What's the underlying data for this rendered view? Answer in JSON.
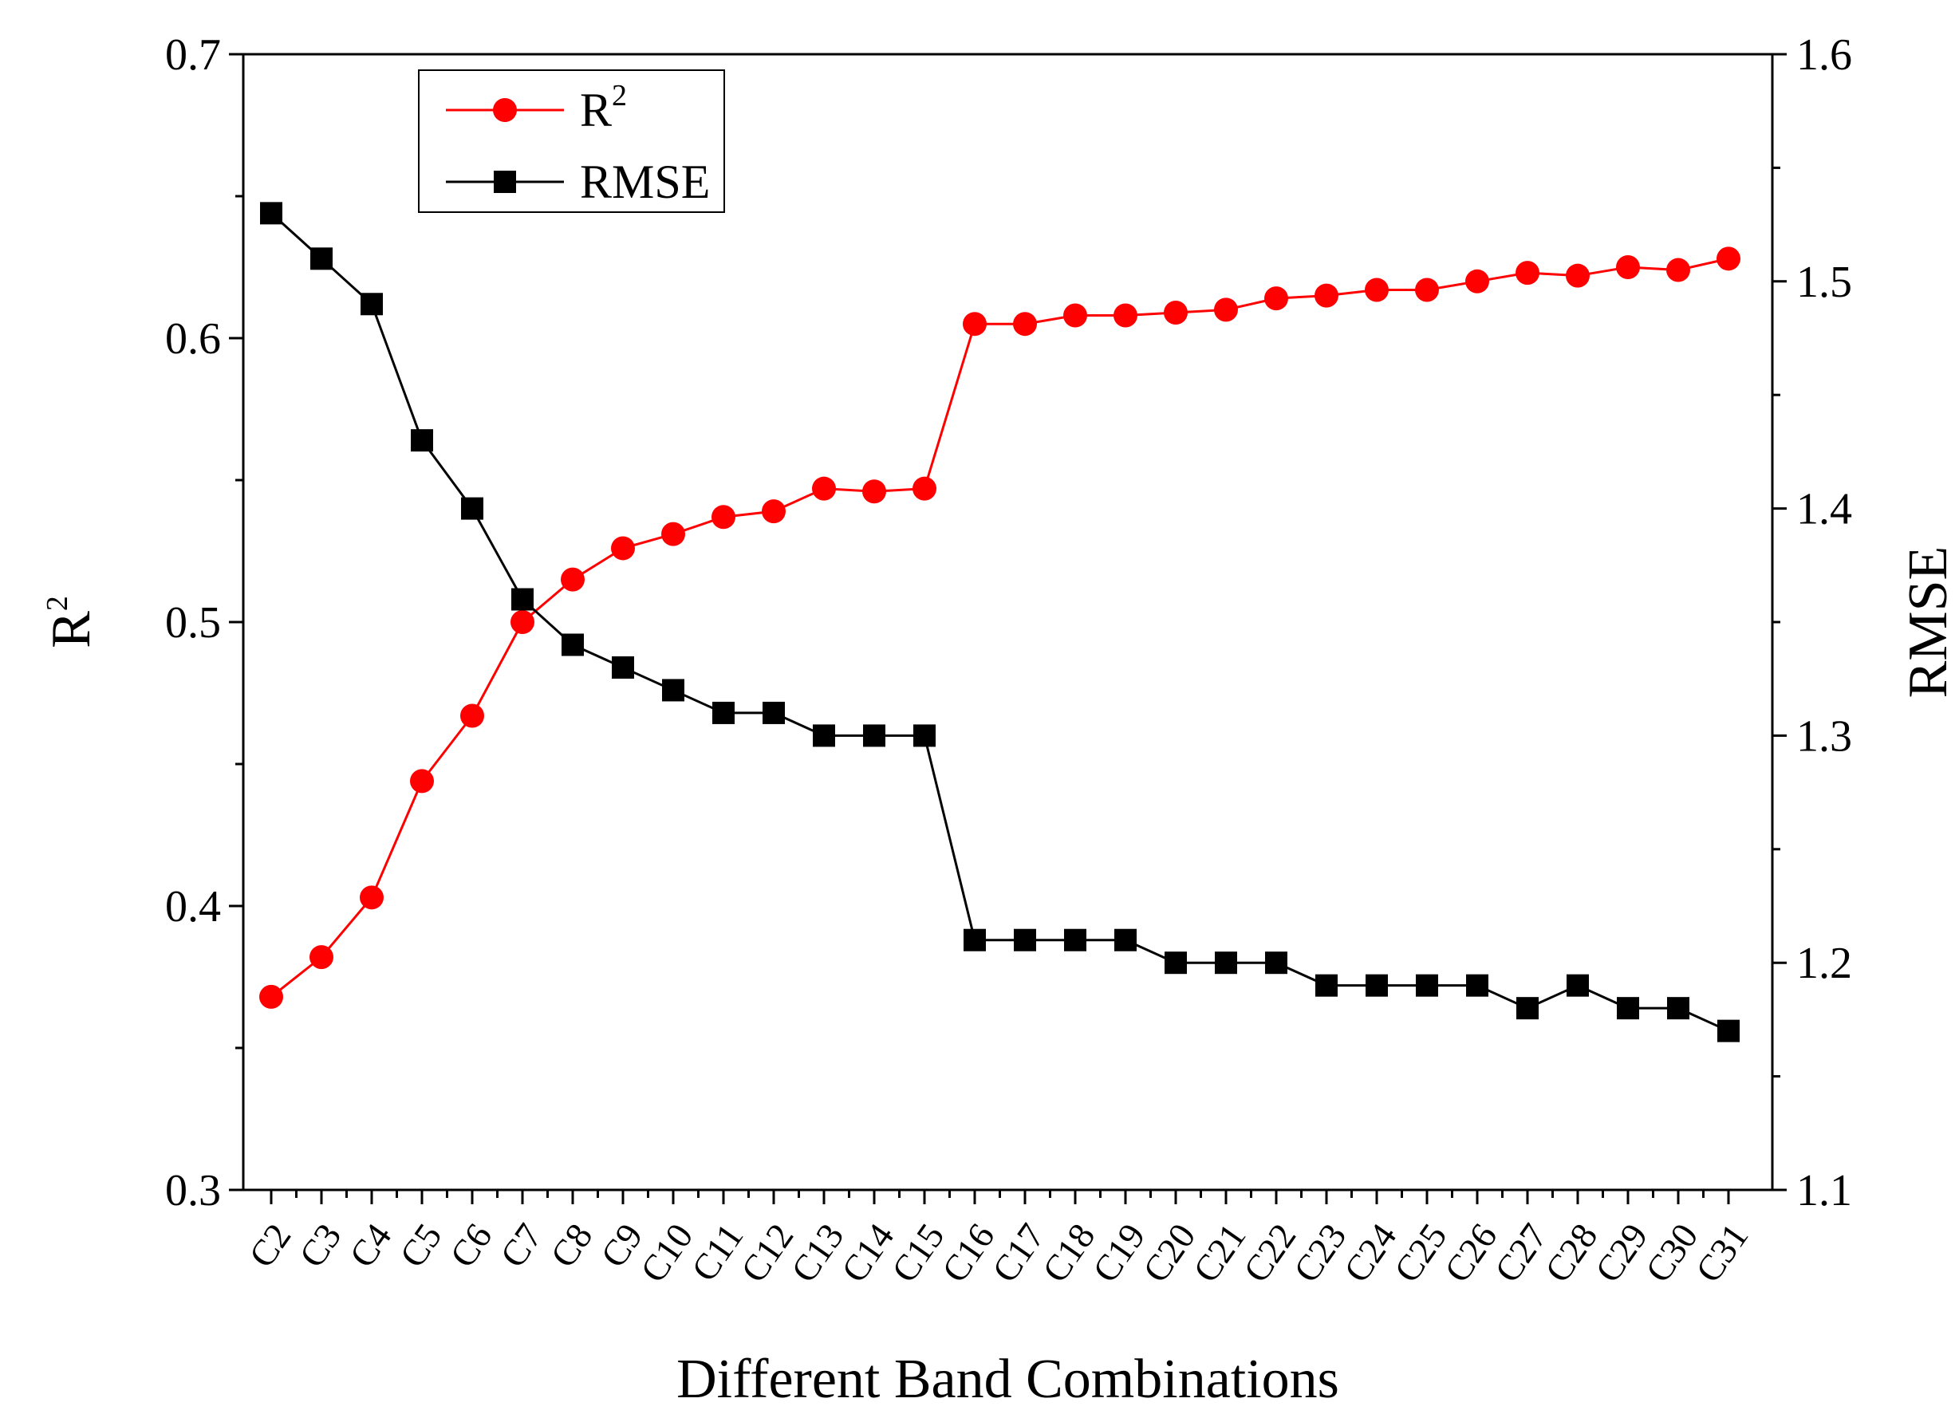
{
  "chart_data": {
    "type": "line",
    "categories": [
      "C2",
      "C3",
      "C4",
      "C5",
      "C6",
      "C7",
      "C8",
      "C9",
      "C10",
      "C11",
      "C12",
      "C13",
      "C14",
      "C15",
      "C16",
      "C17",
      "C18",
      "C19",
      "C20",
      "C21",
      "C22",
      "C23",
      "C24",
      "C25",
      "C26",
      "C27",
      "C28",
      "C29",
      "C30",
      "C31"
    ],
    "xlabel": "Different Band Combinations",
    "y_left": {
      "label": "R",
      "label_sup": "2",
      "ylim": [
        0.3,
        0.7
      ],
      "ticks": [
        "0.3",
        "0.4",
        "0.5",
        "0.6",
        "0.7"
      ]
    },
    "y_right": {
      "label": "RMSE",
      "ylim": [
        1.1,
        1.6
      ],
      "ticks": [
        "1.1",
        "1.2",
        "1.3",
        "1.4",
        "1.5",
        "1.6"
      ]
    },
    "series": [
      {
        "name": "R",
        "name_sup": "2",
        "axis": "left",
        "color": "#ff0000",
        "marker": "circle",
        "values": [
          0.368,
          0.382,
          0.403,
          0.444,
          0.467,
          0.5,
          0.515,
          0.526,
          0.531,
          0.537,
          0.539,
          0.547,
          0.546,
          0.547,
          0.605,
          0.605,
          0.608,
          0.608,
          0.609,
          0.61,
          0.614,
          0.615,
          0.617,
          0.617,
          0.62,
          0.623,
          0.622,
          0.625,
          0.624,
          0.628
        ]
      },
      {
        "name": "RMSE",
        "axis": "right",
        "color": "#000000",
        "marker": "square",
        "values": [
          1.53,
          1.51,
          1.49,
          1.43,
          1.4,
          1.36,
          1.34,
          1.33,
          1.32,
          1.31,
          1.31,
          1.3,
          1.3,
          1.3,
          1.21,
          1.21,
          1.21,
          1.21,
          1.2,
          1.2,
          1.2,
          1.19,
          1.19,
          1.19,
          1.19,
          1.18,
          1.19,
          1.18,
          1.18,
          1.17
        ]
      }
    ],
    "legend_position": "top-left",
    "grid": false
  }
}
